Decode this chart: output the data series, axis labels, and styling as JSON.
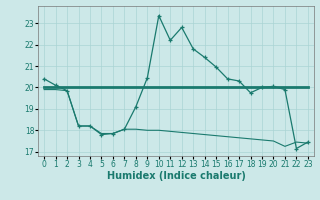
{
  "xlabel": "Humidex (Indice chaleur)",
  "bg_color": "#cce8e8",
  "line_color": "#1a7a6e",
  "x_ticks": [
    0,
    1,
    2,
    3,
    4,
    5,
    6,
    7,
    8,
    9,
    10,
    11,
    12,
    13,
    14,
    15,
    16,
    17,
    18,
    19,
    20,
    21,
    22,
    23
  ],
  "ylim": [
    16.8,
    23.8
  ],
  "yticks": [
    17,
    18,
    19,
    20,
    21,
    22,
    23
  ],
  "line1_x": [
    0,
    1,
    2,
    3,
    4,
    5,
    6,
    7,
    8,
    9,
    10,
    11,
    12,
    13,
    14,
    15,
    16,
    17,
    18,
    19,
    20,
    21,
    22,
    23
  ],
  "line1_y": [
    20.4,
    20.1,
    19.85,
    18.2,
    18.2,
    17.8,
    17.85,
    18.05,
    19.1,
    20.45,
    23.35,
    22.2,
    22.8,
    21.8,
    21.4,
    20.95,
    20.4,
    20.3,
    19.75,
    20.0,
    20.05,
    19.9,
    17.15,
    17.45
  ],
  "line2_x": [
    0,
    23
  ],
  "line2_y": [
    20.0,
    20.0
  ],
  "line3_x": [
    0,
    1,
    2,
    3,
    4,
    5,
    6,
    7,
    8,
    9,
    10,
    11,
    12,
    13,
    14,
    15,
    16,
    17,
    18,
    19,
    20,
    21,
    22,
    23
  ],
  "line3_y": [
    19.9,
    19.9,
    19.85,
    18.2,
    18.2,
    17.85,
    17.85,
    18.05,
    18.05,
    18.0,
    18.0,
    17.95,
    17.9,
    17.85,
    17.8,
    17.75,
    17.7,
    17.65,
    17.6,
    17.55,
    17.5,
    17.25,
    17.45,
    17.4
  ],
  "grid_color": "#aad4d4",
  "tick_fontsize": 5.5,
  "xlabel_fontsize": 7
}
